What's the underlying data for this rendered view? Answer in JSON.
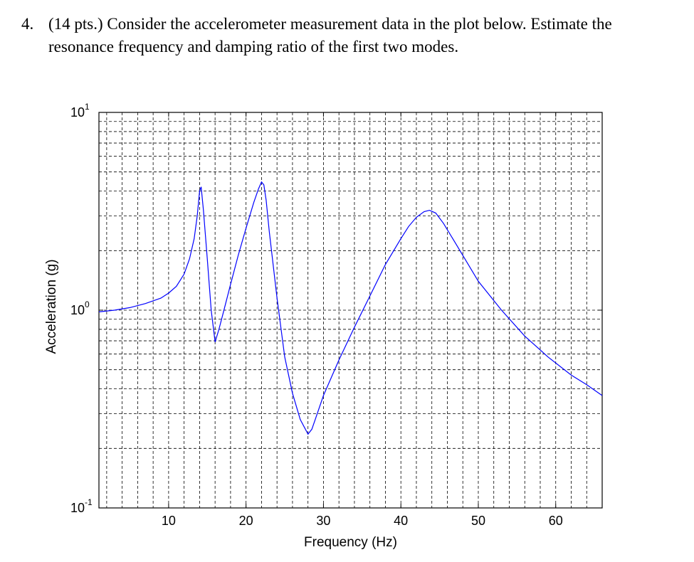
{
  "question": {
    "number": "4.",
    "text_line1": "(14 pts.)  Consider the accelerometer measurement data in the plot below. Estimate the",
    "text_line2": "resonance frequency and damping ratio of the first two modes."
  },
  "chart_data": {
    "type": "line",
    "title": "",
    "xlabel": "Frequency (Hz)",
    "ylabel": "Acceleration (g)",
    "xlim": [
      1,
      66
    ],
    "ylim": [
      0.1,
      10
    ],
    "yscale": "log",
    "grid": true,
    "x_ticks": [
      10,
      20,
      30,
      40,
      50,
      60
    ],
    "x_tick_labels": [
      "10",
      "20",
      "30",
      "40",
      "50",
      "60"
    ],
    "y_ticks": [
      {
        "value": 10,
        "base": "10",
        "exp": "1"
      },
      {
        "value": 1,
        "base": "10",
        "exp": "0"
      },
      {
        "value": 0.1,
        "base": "10",
        "exp": "-1"
      }
    ],
    "line_color": "#0000ff",
    "series": [
      {
        "x": [
          1,
          3,
          5,
          7,
          9,
          10,
          11,
          12,
          12.7,
          13.3,
          13.7,
          14.0,
          14.2,
          14.5,
          15.0,
          15.5,
          16.0,
          16.5,
          17,
          18,
          19,
          20,
          21,
          21.6,
          22.0,
          22.3,
          22.6,
          23,
          24,
          25,
          26,
          27,
          28.0,
          28.5,
          29,
          30,
          32,
          34,
          36,
          38,
          40,
          41,
          42,
          43,
          43.7,
          44.5,
          45.5,
          47,
          50,
          53,
          56,
          59,
          62,
          64,
          66
        ],
        "y": [
          0.98,
          1.0,
          1.03,
          1.08,
          1.15,
          1.22,
          1.32,
          1.52,
          1.82,
          2.3,
          3.0,
          4.0,
          4.2,
          3.2,
          1.8,
          1.0,
          0.69,
          0.8,
          0.95,
          1.35,
          1.9,
          2.6,
          3.5,
          4.1,
          4.45,
          4.3,
          3.6,
          2.5,
          1.15,
          0.58,
          0.38,
          0.28,
          0.236,
          0.25,
          0.285,
          0.37,
          0.56,
          0.82,
          1.18,
          1.7,
          2.3,
          2.65,
          2.95,
          3.15,
          3.2,
          3.1,
          2.75,
          2.2,
          1.4,
          1.0,
          0.74,
          0.58,
          0.47,
          0.42,
          0.37
        ]
      }
    ]
  }
}
